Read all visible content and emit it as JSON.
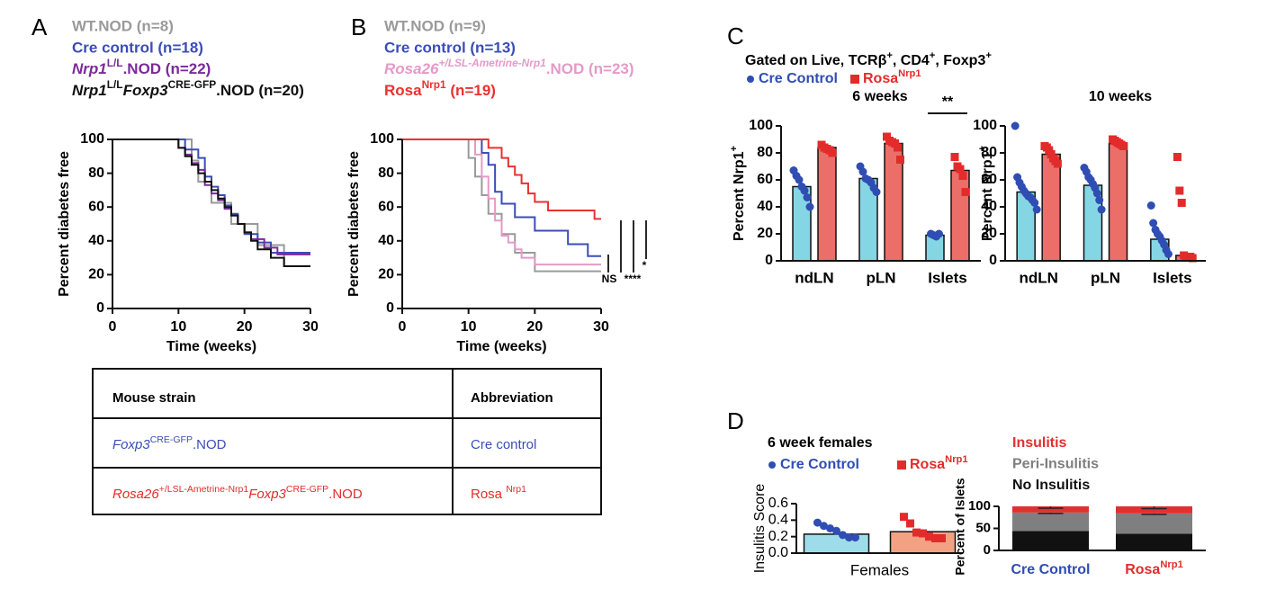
{
  "panel_labels": [
    "A",
    "B",
    "C",
    "D"
  ],
  "chart_data": [
    {
      "type": "step",
      "ylabel": "Percent diabetes free",
      "xlabel": "Time (weeks)",
      "xlim": [
        0,
        30
      ],
      "xticks": [
        0,
        10,
        20,
        30
      ],
      "ylim": [
        0,
        100
      ],
      "yticks": [
        0,
        20,
        40,
        60,
        80,
        100
      ],
      "series": [
        {
          "name": "WT.NOD (n=8)",
          "color": "#9a9a9a",
          "x": [
            0,
            12,
            13,
            15,
            18,
            22,
            26,
            30
          ],
          "values": [
            100,
            87.5,
            75,
            62.5,
            50,
            37.5,
            25,
            25
          ]
        },
        {
          "name": "Cre control (n=18)",
          "color": "#3b4db8",
          "x": [
            0,
            11,
            13,
            14,
            15,
            16,
            17,
            18,
            19,
            20,
            22,
            24,
            30
          ],
          "values": [
            100,
            94,
            89,
            78,
            72,
            67,
            61,
            56,
            50,
            44,
            39,
            33,
            33
          ]
        },
        {
          "name": [
            {
              "text": "Nrp1",
              "style": "italic"
            },
            {
              "text": "L/L",
              "style": "sup"
            },
            {
              "text": ".NOD (n=22)",
              "style": "plain"
            }
          ],
          "color": "#7b2a9a",
          "x": [
            0,
            10,
            11,
            12,
            13,
            14,
            15,
            16,
            17,
            18,
            19,
            20,
            21,
            23,
            25,
            30
          ],
          "values": [
            100,
            95,
            91,
            86,
            82,
            73,
            68,
            64,
            59,
            55,
            50,
            45,
            41,
            36,
            32,
            32
          ]
        },
        {
          "name": [
            {
              "text": "Nrp1",
              "style": "italic"
            },
            {
              "text": "L/L",
              "style": "sup"
            },
            {
              "text": "Foxp3",
              "style": "italic"
            },
            {
              "text": "CRE-GFP",
              "style": "sup"
            },
            {
              "text": ".NOD (n=20)",
              "style": "plain"
            }
          ],
          "color": "#111111",
          "x": [
            0,
            10,
            11,
            12,
            13,
            14,
            15,
            16,
            17,
            18,
            19,
            20,
            21,
            22,
            24,
            26,
            30
          ],
          "values": [
            100,
            95,
            90,
            85,
            80,
            75,
            70,
            65,
            60,
            55,
            50,
            45,
            40,
            35,
            30,
            25,
            25
          ]
        }
      ]
    },
    {
      "type": "step",
      "ylabel": "Percent diabetes free",
      "xlabel": "Time (weeks)",
      "xlim": [
        0,
        30
      ],
      "xticks": [
        0,
        10,
        20,
        30
      ],
      "ylim": [
        0,
        100
      ],
      "yticks": [
        0,
        20,
        40,
        60,
        80,
        100
      ],
      "annotations": [
        "NS",
        "****",
        "*"
      ],
      "series": [
        {
          "name": "WT.NOD (n=9)",
          "color": "#9a9a9a",
          "x": [
            0,
            10,
            11,
            12,
            13,
            15,
            17,
            20,
            25,
            30
          ],
          "values": [
            100,
            89,
            78,
            67,
            56,
            44,
            33,
            22,
            22,
            22
          ]
        },
        {
          "name": "Cre control (n=13)",
          "color": "#3b4db8",
          "x": [
            0,
            12,
            13,
            14,
            15,
            17,
            20,
            25,
            28,
            30
          ],
          "values": [
            100,
            92,
            85,
            69,
            62,
            54,
            46,
            38,
            31,
            31
          ]
        },
        {
          "name": [
            {
              "text": "Rosa26",
              "style": "italic"
            },
            {
              "text": "+/LSL-Ametrine-Nrp1",
              "style": "sup-italic"
            },
            {
              "text": ".NOD (n=23)",
              "style": "plain"
            }
          ],
          "color": "#e49ac8",
          "x": [
            0,
            11,
            12,
            13,
            14,
            15,
            16,
            17,
            18,
            20,
            30
          ],
          "values": [
            100,
            91,
            78,
            65,
            52,
            43,
            39,
            35,
            30,
            26,
            26
          ]
        },
        {
          "name": [
            {
              "text": "Rosa",
              "style": "plain"
            },
            {
              "text": "Nrp1",
              "style": "sup"
            },
            {
              "text": " (n=19)",
              "style": "plain"
            }
          ],
          "color": "#e8322f",
          "x": [
            0,
            13,
            15,
            16,
            17,
            18,
            19,
            20,
            22,
            25,
            28,
            29,
            30
          ],
          "values": [
            100,
            95,
            89,
            84,
            79,
            74,
            68,
            63,
            58,
            58,
            58,
            53,
            53
          ]
        }
      ]
    },
    {
      "type": "bar-dot",
      "header": [
        {
          "text": "Gated on Live, TCRβ",
          "style": "plain"
        },
        {
          "text": "+",
          "style": "sup"
        },
        {
          "text": ", CD4",
          "style": "plain"
        },
        {
          "text": "+",
          "style": "sup"
        },
        {
          "text": ", Foxp3",
          "style": "plain"
        },
        {
          "text": "+",
          "style": "sup"
        }
      ],
      "title": "6 weeks",
      "ylabel": [
        {
          "text": "Percent Nrp1",
          "style": "plain"
        },
        {
          "text": "+",
          "style": "sup"
        }
      ],
      "categories": [
        "ndLN",
        "pLN",
        "Islets"
      ],
      "ylim": [
        0,
        100
      ],
      "yticks": [
        0,
        20,
        40,
        60,
        80,
        100
      ],
      "annotation": "**",
      "series": [
        {
          "name": "Cre Control",
          "marker": "circle",
          "color": "#85d6e4",
          "marker_color": "#2f4db3",
          "values": [
            55,
            61,
            19
          ],
          "points": [
            [
              67,
              63,
              60,
              55,
              52,
              47,
              40
            ],
            [
              70,
              66,
              61,
              60,
              58,
              54,
              51
            ],
            [
              20,
              19,
              18,
              20
            ]
          ]
        },
        {
          "name": [
            {
              "text": "Rosa",
              "style": "plain"
            },
            {
              "text": "Nrp1",
              "style": "sup"
            }
          ],
          "marker": "square",
          "color": "#ec6e68",
          "marker_color": "#e32b2b",
          "values": [
            84,
            87,
            67
          ],
          "points": [
            [
              86,
              84,
              83,
              82,
              80
            ],
            [
              92,
              89,
              88,
              87,
              84,
              75
            ],
            [
              77,
              70,
              68,
              63,
              51
            ]
          ]
        }
      ]
    },
    {
      "type": "bar-dot",
      "title": "10 weeks",
      "ylabel": [
        {
          "text": "Percent Nrp1",
          "style": "plain"
        },
        {
          "text": "+",
          "style": "sup"
        }
      ],
      "categories": [
        "ndLN",
        "pLN",
        "Islets"
      ],
      "ylim": [
        0,
        100
      ],
      "yticks": [
        0,
        20,
        40,
        60,
        80,
        100
      ],
      "series": [
        {
          "marker": "circle",
          "color": "#85d6e4",
          "marker_color": "#2f4db3",
          "values": [
            51,
            56,
            16
          ],
          "points": [
            [
              100,
              62,
              58,
              55,
              52,
              50,
              48,
              47,
              45,
              43,
              38
            ],
            [
              69,
              66,
              62,
              60,
              57,
              54,
              50,
              45,
              38
            ],
            [
              41,
              28,
              23,
              20,
              18,
              15,
              12,
              8,
              5
            ]
          ]
        },
        {
          "marker": "square",
          "color": "#ec6e68",
          "marker_color": "#e32b2b",
          "values": [
            79,
            87,
            4
          ],
          "points": [
            [
              85,
              84,
              82,
              79,
              76,
              74,
              72
            ],
            [
              90,
              89,
              88,
              87,
              86,
              85
            ],
            [
              77,
              52,
              43,
              4,
              3,
              3,
              3,
              2
            ]
          ]
        }
      ]
    },
    {
      "type": "bar-dot",
      "title": "6 week females",
      "ylabel": "Insulitis Score",
      "categories": [
        "Females"
      ],
      "ylim": [
        0,
        0.6
      ],
      "yticks": [
        {
          "value": 0,
          "label": "0.0"
        },
        0.2,
        0.4,
        0.6
      ],
      "series": [
        {
          "name": "Cre Control",
          "marker": "circle",
          "color": "#9fdcea",
          "marker_color": "#2f4db3",
          "values": [
            0.23
          ],
          "points": [
            [
              0.37,
              0.33,
              0.3,
              0.27,
              0.22,
              0.19,
              0.19
            ]
          ]
        },
        {
          "name": [
            {
              "text": "Rosa",
              "style": "plain"
            },
            {
              "text": "Nrp1",
              "style": "sup"
            }
          ],
          "marker": "square",
          "color": "#f2a283",
          "marker_color": "#e32b2b",
          "values": [
            0.26
          ],
          "points": [
            [
              0.44,
              0.36,
              0.25,
              0.24,
              0.2,
              0.18,
              0.18
            ]
          ]
        }
      ]
    },
    {
      "type": "stacked-bar",
      "ylabel": "Percent of Islets",
      "categories": [
        "Cre Control",
        [
          {
            "text": "Rosa",
            "style": "plain"
          },
          {
            "text": "Nrp1",
            "style": "sup"
          }
        ]
      ],
      "category_colors": [
        "#2f4db3",
        "#e32b2b"
      ],
      "ylim": [
        0,
        100
      ],
      "yticks": [
        0,
        50,
        100
      ],
      "series": [
        {
          "name": "No Insulitis",
          "color": "#111111",
          "values": [
            44,
            38
          ]
        },
        {
          "name": "Peri-Insulitis",
          "color": "#7f7f7f",
          "values": [
            42,
            46
          ],
          "errors": [
            2,
            2
          ]
        },
        {
          "name": "Insulitis",
          "color": "#e03030",
          "values": [
            14,
            16
          ],
          "errors": [
            4,
            5
          ]
        }
      ]
    }
  ],
  "table": {
    "header": [
      "Mouse strain",
      "Abbreviation"
    ],
    "row_colors": [
      "#3b4db8",
      "#e32b2b"
    ],
    "rows": [
      [
        [
          {
            "text": "Foxp3",
            "style": "italic"
          },
          {
            "text": "CRE-GFP",
            "style": "sup"
          },
          {
            "text": ".NOD",
            "style": "plain"
          }
        ],
        "Cre control"
      ],
      [
        [
          {
            "text": "Rosa26",
            "style": "italic"
          },
          {
            "text": "+/LSL-Ametrine-Nrp1",
            "style": "sup"
          },
          {
            "text": "Foxp3",
            "style": "italic"
          },
          {
            "text": "CRE-GFP",
            "style": "sup"
          },
          {
            "text": ".NOD",
            "style": "plain"
          }
        ],
        [
          {
            "text": "Rosa ",
            "style": "plain"
          },
          {
            "text": "Nrp1",
            "style": "sup"
          }
        ]
      ]
    ]
  }
}
